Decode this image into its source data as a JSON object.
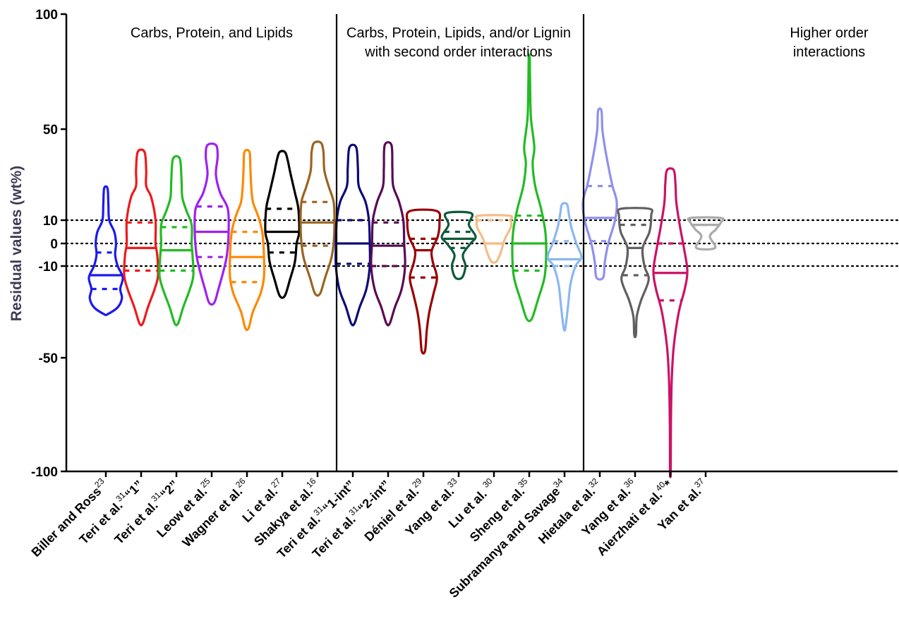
{
  "chart_data": {
    "type": "violin",
    "ylabel": "Residual values (wt%)",
    "yticks": [
      100,
      50,
      10,
      0,
      -10,
      -50,
      -100
    ],
    "ylim": [
      -100,
      100
    ],
    "reference_lines": [
      10,
      0,
      -10
    ],
    "groups": [
      {
        "title": [
          "Carbs, Protein, and Lipids"
        ],
        "start": 0,
        "end": 6
      },
      {
        "title": [
          "Carbs, Protein, Lipids, and/or Lignin",
          "with second order interactions"
        ],
        "start": 7,
        "end": 13
      },
      {
        "title": [
          "Higher order",
          "interactions"
        ],
        "start": 14,
        "end": 17
      }
    ],
    "series": [
      {
        "label": "Biller and Ross",
        "ref": "23",
        "color": "#1a1aee",
        "min": -31,
        "max": 24,
        "median": -14,
        "q1": -20,
        "q3": -4,
        "shape": [
          [
            -31,
            0.1
          ],
          [
            -28,
            0.7
          ],
          [
            -24,
            0.95
          ],
          [
            -20,
            0.85
          ],
          [
            -15,
            1.0
          ],
          [
            -10,
            0.7
          ],
          [
            -5,
            0.55
          ],
          [
            0,
            0.6
          ],
          [
            5,
            0.5
          ],
          [
            10,
            0.2
          ],
          [
            17,
            0.15
          ],
          [
            24,
            0.1
          ]
        ]
      },
      {
        "label": "Teri et al.",
        "ref": "31",
        "suffix": "“1”",
        "color": "#ee1a1a",
        "min": -35,
        "max": 40,
        "median": -2,
        "q1": -12,
        "q3": 9,
        "shape": [
          [
            -35,
            0.1
          ],
          [
            -28,
            0.4
          ],
          [
            -20,
            0.8
          ],
          [
            -14,
            1.0
          ],
          [
            -5,
            0.95
          ],
          [
            0,
            0.85
          ],
          [
            10,
            0.85
          ],
          [
            20,
            0.6
          ],
          [
            25,
            0.3
          ],
          [
            32,
            0.3
          ],
          [
            40,
            0.2
          ]
        ]
      },
      {
        "label": "Teri et al.",
        "ref": "31",
        "suffix": "“2”",
        "color": "#22bb22",
        "min": -35,
        "max": 37,
        "median": -3,
        "q1": -12,
        "q3": 7,
        "shape": [
          [
            -35,
            0.1
          ],
          [
            -28,
            0.4
          ],
          [
            -20,
            0.8
          ],
          [
            -14,
            1.0
          ],
          [
            -5,
            0.95
          ],
          [
            0,
            0.9
          ],
          [
            8,
            0.9
          ],
          [
            14,
            0.6
          ],
          [
            20,
            0.35
          ],
          [
            28,
            0.3
          ],
          [
            37,
            0.2
          ]
        ]
      },
      {
        "label": "Leow et al.",
        "ref": "25",
        "color": "#a020f0",
        "min": -26,
        "max": 43,
        "median": 5,
        "q1": -6,
        "q3": 16,
        "shape": [
          [
            -26,
            0.15
          ],
          [
            -20,
            0.4
          ],
          [
            -12,
            0.7
          ],
          [
            -5,
            0.9
          ],
          [
            5,
            1.0
          ],
          [
            15,
            0.95
          ],
          [
            22,
            0.5
          ],
          [
            30,
            0.25
          ],
          [
            38,
            0.35
          ],
          [
            43,
            0.25
          ]
        ]
      },
      {
        "label": "Wagner et al.",
        "ref": "26",
        "color": "#ff8800",
        "min": -37,
        "max": 40,
        "median": -6,
        "q1": -17,
        "q3": 5,
        "shape": [
          [
            -37,
            0.1
          ],
          [
            -30,
            0.35
          ],
          [
            -22,
            0.8
          ],
          [
            -15,
            1.0
          ],
          [
            -5,
            1.0
          ],
          [
            5,
            0.9
          ],
          [
            12,
            0.65
          ],
          [
            18,
            0.35
          ],
          [
            25,
            0.25
          ],
          [
            33,
            0.2
          ],
          [
            40,
            0.15
          ]
        ]
      },
      {
        "label": "Li et al.",
        "ref": "27",
        "color": "#000000",
        "min": -23,
        "max": 40,
        "median": 5,
        "q1": -4,
        "q3": 15,
        "shape": [
          [
            -23,
            0.15
          ],
          [
            -16,
            0.45
          ],
          [
            -8,
            0.75
          ],
          [
            0,
            0.85
          ],
          [
            5,
            1.0
          ],
          [
            15,
            0.95
          ],
          [
            22,
            0.75
          ],
          [
            30,
            0.5
          ],
          [
            37,
            0.3
          ],
          [
            40,
            0.15
          ]
        ]
      },
      {
        "label": "Shakya et al.",
        "ref": "16",
        "color": "#9a6420",
        "min": -22,
        "max": 44,
        "median": 9,
        "q1": -1,
        "q3": 18,
        "shape": [
          [
            -22,
            0.15
          ],
          [
            -15,
            0.45
          ],
          [
            -7,
            0.8
          ],
          [
            0,
            0.95
          ],
          [
            9,
            1.0
          ],
          [
            18,
            0.95
          ],
          [
            25,
            0.65
          ],
          [
            32,
            0.4
          ],
          [
            40,
            0.35
          ],
          [
            44,
            0.2
          ]
        ]
      },
      {
        "label": "Teri et al.",
        "ref": "31",
        "suffix": "“1-int”",
        "color": "#0a0a7a",
        "min": -35,
        "max": 42,
        "median": 0,
        "q1": -9,
        "q3": 10,
        "shape": [
          [
            -35,
            0.1
          ],
          [
            -28,
            0.4
          ],
          [
            -20,
            0.8
          ],
          [
            -10,
            1.0
          ],
          [
            0,
            1.0
          ],
          [
            10,
            0.95
          ],
          [
            18,
            0.75
          ],
          [
            25,
            0.35
          ],
          [
            33,
            0.3
          ],
          [
            42,
            0.2
          ]
        ]
      },
      {
        "label": "Teri et al.",
        "ref": "31",
        "suffix": "“2-int”",
        "color": "#5a0a55",
        "min": -35,
        "max": 43,
        "median": -1,
        "q1": -10,
        "q3": 9,
        "shape": [
          [
            -35,
            0.1
          ],
          [
            -28,
            0.4
          ],
          [
            -20,
            0.8
          ],
          [
            -10,
            1.0
          ],
          [
            0,
            0.95
          ],
          [
            10,
            0.9
          ],
          [
            18,
            0.65
          ],
          [
            25,
            0.3
          ],
          [
            33,
            0.25
          ],
          [
            43,
            0.2
          ]
        ]
      },
      {
        "label": "Déniel et al.",
        "ref": "29",
        "color": "#990000",
        "min": -47,
        "max": 14,
        "median": -3,
        "q1": -15,
        "q3": 2,
        "shape": [
          [
            -47,
            0.1
          ],
          [
            -38,
            0.2
          ],
          [
            -30,
            0.35
          ],
          [
            -22,
            0.6
          ],
          [
            -15,
            0.8
          ],
          [
            -8,
            0.55
          ],
          [
            -3,
            0.5
          ],
          [
            3,
            0.85
          ],
          [
            9,
            0.95
          ],
          [
            14,
            0.8
          ]
        ]
      },
      {
        "label": "Yang et al.",
        "ref": "33",
        "color": "#0d5a3a",
        "min": -15,
        "max": 13,
        "median": 2,
        "q1": -2,
        "q3": 5,
        "shape": [
          [
            -15,
            0.2
          ],
          [
            -10,
            0.4
          ],
          [
            -5,
            0.25
          ],
          [
            0,
            0.7
          ],
          [
            3,
            1.0
          ],
          [
            8,
            0.6
          ],
          [
            13,
            0.75
          ]
        ]
      },
      {
        "label": "Lu et al.",
        "ref": "30",
        "suffix": "",
        "refBefore": true,
        "color": "#f4bd88",
        "min": -8,
        "max": 12,
        "median": 0,
        "q1": 0,
        "q3": 10,
        "shape": [
          [
            -8,
            0.15
          ],
          [
            -4,
            0.4
          ],
          [
            2,
            0.65
          ],
          [
            7,
            1.0
          ],
          [
            10,
            1.0
          ],
          [
            12,
            0.9
          ]
        ]
      },
      {
        "label": "Sheng et al.",
        "ref": "35",
        "color": "#22bb22",
        "min": -33,
        "max": 81,
        "median": 0,
        "q1": -12,
        "q3": 12,
        "shape": [
          [
            -33,
            0.15
          ],
          [
            -25,
            0.5
          ],
          [
            -15,
            0.9
          ],
          [
            -5,
            1.0
          ],
          [
            5,
            0.95
          ],
          [
            15,
            0.7
          ],
          [
            25,
            0.35
          ],
          [
            35,
            0.2
          ],
          [
            42,
            0.3
          ],
          [
            55,
            0.1
          ],
          [
            70,
            0.05
          ],
          [
            81,
            0.03
          ]
        ]
      },
      {
        "label": "Subramanya and Savage",
        "ref": "34",
        "color": "#8ab8f0",
        "min": -37,
        "max": 17,
        "median": -7,
        "q1": -10,
        "q3": 1,
        "shape": [
          [
            -37,
            0.05
          ],
          [
            -28,
            0.2
          ],
          [
            -18,
            0.35
          ],
          [
            -10,
            0.65
          ],
          [
            -6,
            1.0
          ],
          [
            0,
            0.7
          ],
          [
            7,
            0.4
          ],
          [
            13,
            0.25
          ],
          [
            17,
            0.15
          ]
        ]
      },
      {
        "label": "Hietala et al.",
        "ref": "32",
        "color": "#8f8ff0",
        "min": -15,
        "max": 58,
        "median": 11,
        "q1": 1,
        "q3": 25,
        "shape": [
          [
            -15,
            0.2
          ],
          [
            -8,
            0.3
          ],
          [
            0,
            0.5
          ],
          [
            10,
            0.9
          ],
          [
            18,
            1.0
          ],
          [
            25,
            0.75
          ],
          [
            32,
            0.55
          ],
          [
            42,
            0.3
          ],
          [
            50,
            0.15
          ],
          [
            58,
            0.1
          ]
        ]
      },
      {
        "label": "Yang et al.",
        "ref": "36",
        "color": "#606060",
        "min": -40,
        "max": 15,
        "median": -2,
        "q1": -14,
        "q3": 8,
        "shape": [
          [
            -40,
            0.05
          ],
          [
            -32,
            0.1
          ],
          [
            -25,
            0.35
          ],
          [
            -16,
            0.8
          ],
          [
            -10,
            0.55
          ],
          [
            -2,
            0.45
          ],
          [
            5,
            0.85
          ],
          [
            12,
            0.95
          ],
          [
            15,
            0.85
          ]
        ]
      },
      {
        "label": "Aierzhati et al.",
        "ref": "40",
        "suffix": "*",
        "color": "#cc1166",
        "min": -100,
        "max": 32,
        "median": -13,
        "q1": -25,
        "q3": 0,
        "shape": [
          [
            -100,
            0.02
          ],
          [
            -80,
            0.03
          ],
          [
            -60,
            0.08
          ],
          [
            -45,
            0.2
          ],
          [
            -30,
            0.5
          ],
          [
            -20,
            0.85
          ],
          [
            -12,
            1.0
          ],
          [
            -2,
            0.8
          ],
          [
            8,
            0.55
          ],
          [
            18,
            0.35
          ],
          [
            26,
            0.3
          ],
          [
            32,
            0.2
          ]
        ]
      },
      {
        "label": "Yan et al.",
        "ref": "37",
        "color": "#aaaaaa",
        "min": -2,
        "max": 11,
        "median": 8,
        "q1": 8,
        "q3": 8,
        "shape": [
          [
            -2,
            0.55
          ],
          [
            3,
            0.25
          ],
          [
            6,
            0.6
          ],
          [
            9,
            0.9
          ],
          [
            11,
            0.9
          ]
        ]
      }
    ]
  }
}
